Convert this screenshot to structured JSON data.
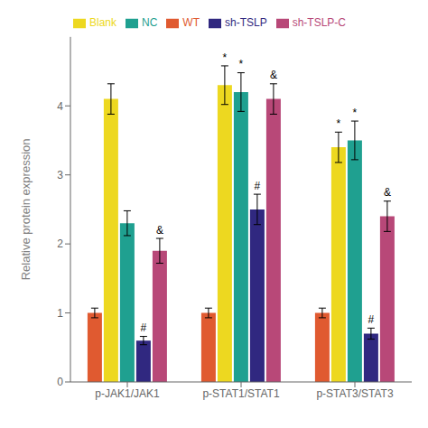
{
  "chart_data": {
    "type": "bar",
    "ylabel": "Relative protein expression",
    "categories": [
      "p-JAK1/JAK1",
      "p-STAT1/STAT1",
      "p-STAT3/STAT3"
    ],
    "series": [
      {
        "name": "WT",
        "color": "#E05A30",
        "values": [
          1.0,
          1.0,
          1.0
        ],
        "errors": [
          0.07,
          0.07,
          0.07
        ],
        "annotations": [
          null,
          null,
          null
        ]
      },
      {
        "name": "Blank",
        "color": "#EDD820",
        "values": [
          4.1,
          4.3,
          3.4
        ],
        "errors": [
          0.22,
          0.28,
          0.22
        ],
        "annotations": [
          null,
          "*",
          "*"
        ]
      },
      {
        "name": "NC",
        "color": "#1FA090",
        "values": [
          2.3,
          4.2,
          3.5
        ],
        "errors": [
          0.18,
          0.28,
          0.28
        ],
        "annotations": [
          null,
          "*",
          "*"
        ]
      },
      {
        "name": "sh-TSLP",
        "color": "#302880",
        "values": [
          0.6,
          2.5,
          0.7
        ],
        "errors": [
          0.06,
          0.22,
          0.08
        ],
        "annotations": [
          "#",
          "#",
          "#"
        ]
      },
      {
        "name": "sh-TSLP-C",
        "color": "#B84878",
        "values": [
          1.9,
          4.1,
          2.4
        ],
        "errors": [
          0.18,
          0.22,
          0.22
        ],
        "annotations": [
          "&",
          "&",
          "&"
        ]
      }
    ],
    "ylim": [
      0,
      5
    ],
    "yticks": [
      0,
      1,
      2,
      3,
      4
    ],
    "legend": "top",
    "grid": false
  }
}
